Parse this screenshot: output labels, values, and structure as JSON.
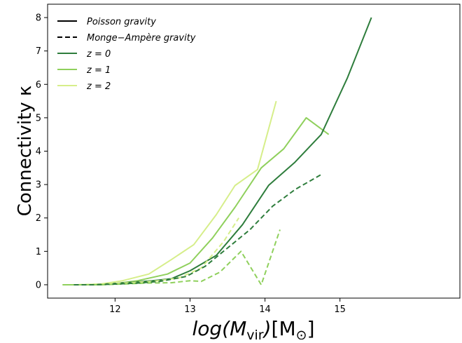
{
  "chart_data": {
    "type": "line",
    "xlabel": "log(M_vir)[M_⊙]",
    "ylabel": "Connectivity κ",
    "xlim": [
      11.1,
      16.6
    ],
    "ylim": [
      -0.4,
      8.4
    ],
    "x_ticks": [
      12,
      13,
      14,
      15
    ],
    "y_ticks": [
      0,
      1,
      2,
      3,
      4,
      5,
      6,
      7,
      8
    ],
    "grid": false,
    "legend_position": "top-left",
    "legend": [
      {
        "label": "Poisson gravity",
        "color": "#000000",
        "dash": "solid"
      },
      {
        "label": "Monge−Ampère gravity",
        "color": "#000000",
        "dash": "dashed"
      },
      {
        "label": "z = 0",
        "color": "#2e7d3c",
        "dash": "solid"
      },
      {
        "label": "z = 1",
        "color": "#8fd05c",
        "dash": "solid"
      },
      {
        "label": "z = 2",
        "color": "#d6ee8a",
        "dash": "solid"
      }
    ],
    "series": [
      {
        "name": "z = 2",
        "gravity": "Poisson gravity",
        "color": "#d6ee8a",
        "dash": "solid",
        "x": [
          11.3,
          11.5,
          11.8,
          12.1,
          12.45,
          12.75,
          13.05,
          13.35,
          13.6,
          13.9,
          14.15
        ],
        "y": [
          0.0,
          0.0,
          0.02,
          0.12,
          0.32,
          0.75,
          1.2,
          2.1,
          2.97,
          3.45,
          5.5
        ]
      },
      {
        "name": "z = 1",
        "gravity": "Poisson gravity",
        "color": "#8fd05c",
        "dash": "solid",
        "x": [
          11.3,
          11.5,
          11.8,
          12.05,
          12.3,
          12.7,
          13.0,
          13.3,
          13.6,
          13.95,
          14.25,
          14.55,
          14.85
        ],
        "y": [
          0.0,
          0.0,
          0.0,
          0.05,
          0.12,
          0.32,
          0.65,
          1.4,
          2.32,
          3.5,
          4.07,
          5.0,
          4.5
        ]
      },
      {
        "name": "z = 0",
        "gravity": "Poisson gravity",
        "color": "#2e7d3c",
        "dash": "solid",
        "x": [
          11.45,
          11.7,
          11.95,
          12.2,
          12.5,
          12.75,
          13.0,
          13.35,
          13.7,
          14.05,
          14.4,
          14.75,
          15.1,
          15.42
        ],
        "y": [
          0.0,
          0.0,
          0.03,
          0.07,
          0.12,
          0.18,
          0.42,
          0.88,
          1.8,
          2.98,
          3.67,
          4.5,
          6.2,
          8.0
        ]
      },
      {
        "name": "z = 2",
        "gravity": "Monge−Ampère gravity",
        "color": "#d6ee8a",
        "dash": "dashed",
        "x": [
          11.5,
          11.8,
          12.1,
          12.5,
          12.85,
          13.15,
          13.45,
          13.65
        ],
        "y": [
          0.0,
          0.02,
          0.05,
          0.1,
          0.2,
          0.5,
          1.3,
          2.0
        ]
      },
      {
        "name": "z = 1",
        "gravity": "Monge−Ampère gravity",
        "color": "#8fd05c",
        "dash": "dashed",
        "x": [
          11.3,
          11.5,
          11.8,
          12.1,
          12.4,
          12.75,
          13.0,
          13.15,
          13.4,
          13.68,
          13.95,
          14.2
        ],
        "y": [
          0.0,
          0.0,
          0.0,
          0.02,
          0.05,
          0.06,
          0.12,
          0.1,
          0.38,
          1.0,
          0.0,
          1.65
        ]
      },
      {
        "name": "z = 0",
        "gravity": "Monge−Ampère gravity",
        "color": "#2e7d3c",
        "dash": "dashed",
        "x": [
          11.45,
          11.7,
          12.0,
          12.3,
          12.6,
          12.95,
          13.2,
          13.5,
          13.8,
          14.1,
          14.4,
          14.75
        ],
        "y": [
          0.0,
          0.0,
          0.02,
          0.05,
          0.1,
          0.25,
          0.55,
          1.1,
          1.65,
          2.35,
          2.85,
          3.3
        ]
      }
    ]
  }
}
